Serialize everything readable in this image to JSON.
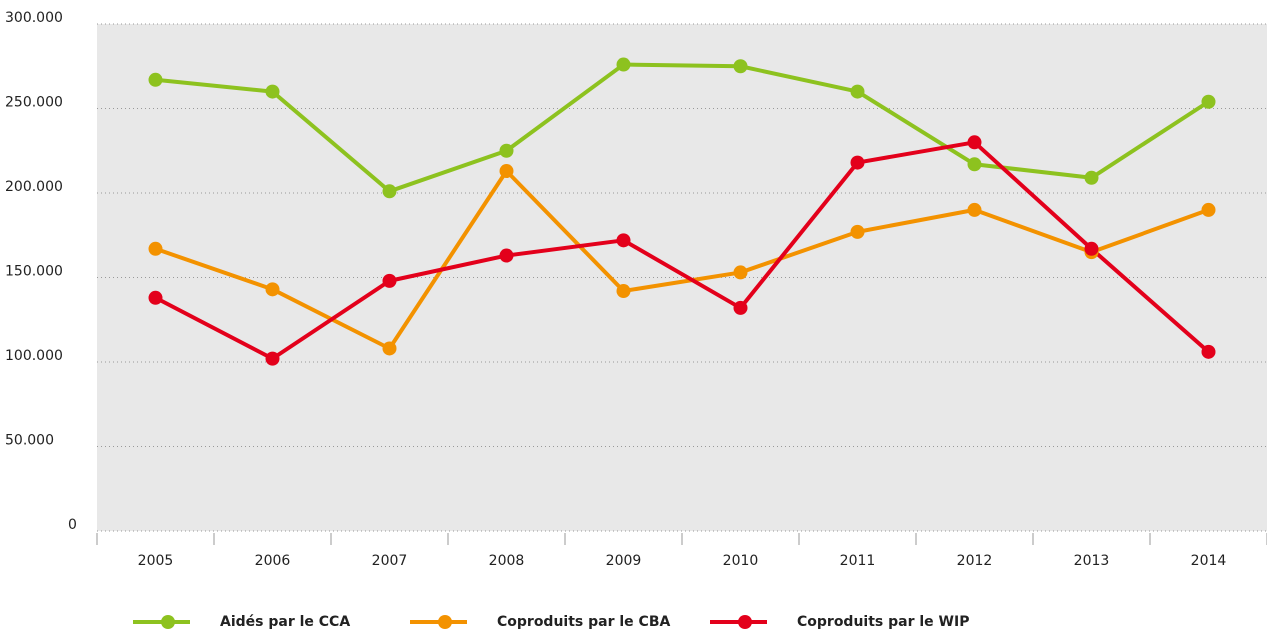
{
  "chart_data": {
    "type": "line",
    "categories": [
      "2005",
      "2006",
      "2007",
      "2008",
      "2009",
      "2010",
      "2011",
      "2012",
      "2013",
      "2014"
    ],
    "series": [
      {
        "name": "Aidés par le CCA",
        "color": "#8dc21f",
        "values": [
          267000,
          260000,
          201000,
          225000,
          276000,
          275000,
          260000,
          217000,
          209000,
          254000
        ]
      },
      {
        "name": "Coproduits par le CBA",
        "color": "#f39200",
        "values": [
          167000,
          143000,
          108000,
          213000,
          142000,
          153000,
          177000,
          190000,
          165000,
          190000
        ]
      },
      {
        "name": "Coproduits par le WIP",
        "color": "#e3001b",
        "values": [
          138000,
          102000,
          148000,
          163000,
          172000,
          132000,
          218000,
          230000,
          167000,
          106000
        ]
      }
    ],
    "ylim": [
      0,
      300000
    ],
    "yticks": [
      0,
      {
        "value": 50000,
        "label": "50.000"
      },
      {
        "value": 100000,
        "label": "100.000"
      },
      {
        "value": 150000,
        "label": "150.000"
      },
      {
        "value": 200000,
        "label": "200.000"
      },
      {
        "value": 250000,
        "label": "250.000"
      },
      {
        "value": 300000,
        "label": "300.000"
      }
    ],
    "grid": true,
    "legend": "bottom"
  }
}
